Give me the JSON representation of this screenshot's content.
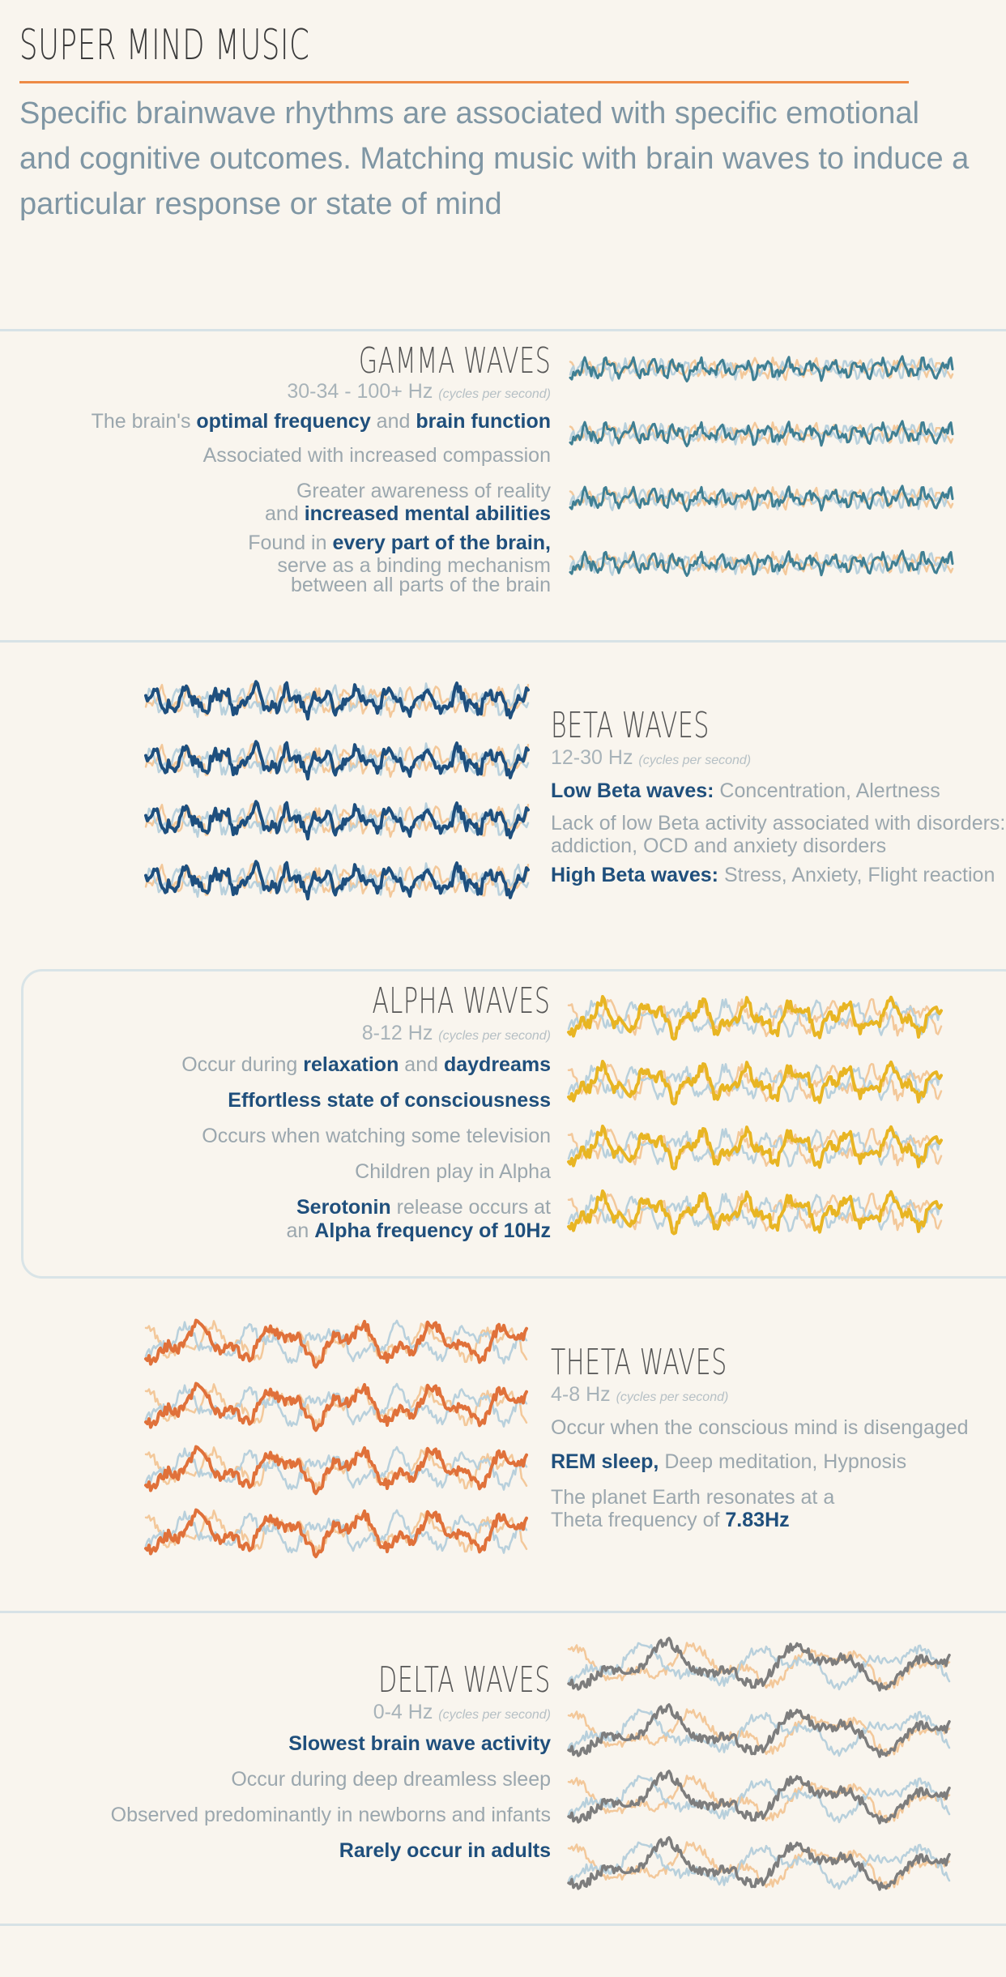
{
  "page": {
    "title": "SUPER MIND MUSIC",
    "intro": "Specific brainwave rhythms are associated with specific emotional and cognitive outcomes. Matching music with brain waves to induce a particular response or state of mind"
  },
  "sections": {
    "gamma": {
      "title": "GAMMA WAVES",
      "freq": "30-34 - 100+ Hz",
      "freq_note": "(cycles per second)",
      "lines": [
        {
          "segments": [
            {
              "t": "The brain's ",
              "b": false
            },
            {
              "t": "optimal frequency",
              "b": true
            },
            {
              "t": " and ",
              "b": false
            },
            {
              "t": "brain function",
              "b": true
            }
          ]
        },
        {
          "segments": [
            {
              "t": "Associated with increased compassion",
              "b": false
            }
          ]
        },
        {
          "segments": [
            {
              "t": "Greater awareness of reality",
              "b": false
            }
          ]
        },
        {
          "segments": [
            {
              "t": "and ",
              "b": false
            },
            {
              "t": "increased mental abilities",
              "b": true
            }
          ]
        },
        {
          "segments": [
            {
              "t": "Found in ",
              "b": false
            },
            {
              "t": "every part of the brain,",
              "b": true
            }
          ]
        },
        {
          "segments": [
            {
              "t": "serve as a binding mechanism",
              "b": false
            }
          ]
        },
        {
          "segments": [
            {
              "t": "between all parts of the brain",
              "b": false
            }
          ]
        }
      ],
      "wave_color": "#3f7f93",
      "wave_count": 4
    },
    "beta": {
      "title": "BETA WAVES",
      "freq": "12-30 Hz",
      "freq_note": "(cycles per second)",
      "lines": [
        {
          "segments": [
            {
              "t": "Low Beta waves:",
              "b": true
            },
            {
              "t": " Concentration, Alertness",
              "b": false
            }
          ]
        },
        {
          "segments": [
            {
              "t": "Lack of low Beta activity associated with disorders: A",
              "b": false
            }
          ]
        },
        {
          "segments": [
            {
              "t": "addiction, OCD and anxiety disorders",
              "b": false
            }
          ]
        },
        {
          "segments": [
            {
              "t": "High Beta waves:",
              "b": true
            },
            {
              "t": " Stress, Anxiety, Flight reaction",
              "b": false
            }
          ]
        }
      ],
      "wave_color": "#1e4f7e",
      "wave_count": 4
    },
    "alpha": {
      "title": "ALPHA WAVES",
      "freq": "8-12 Hz",
      "freq_note": "(cycles per second)",
      "lines": [
        {
          "segments": [
            {
              "t": "Occur during ",
              "b": false
            },
            {
              "t": "relaxation",
              "b": true
            },
            {
              "t": " and ",
              "b": false
            },
            {
              "t": "daydreams",
              "b": true
            }
          ]
        },
        {
          "segments": [
            {
              "t": "Effortless state of consciousness",
              "b": true
            }
          ]
        },
        {
          "segments": [
            {
              "t": "Occurs when watching some television",
              "b": false
            }
          ]
        },
        {
          "segments": [
            {
              "t": "Children play in Alpha",
              "b": false
            }
          ]
        },
        {
          "segments": [
            {
              "t": "Serotonin",
              "b": true
            },
            {
              "t": " release occurs at",
              "b": false
            }
          ]
        },
        {
          "segments": [
            {
              "t": "an ",
              "b": false
            },
            {
              "t": "Alpha frequency of 10Hz",
              "b": true
            }
          ]
        }
      ],
      "wave_color": "#e8b523",
      "wave_count": 4
    },
    "theta": {
      "title": "THETA WAVES",
      "freq": "4-8 Hz",
      "freq_note": "(cycles per second)",
      "lines": [
        {
          "segments": [
            {
              "t": "Occur when the conscious mind is disengaged",
              "b": false
            }
          ]
        },
        {
          "segments": [
            {
              "t": "REM sleep,",
              "b": true
            },
            {
              "t": " Deep meditation, Hypnosis",
              "b": false
            }
          ]
        },
        {
          "segments": [
            {
              "t": "The planet Earth resonates at a",
              "b": false
            }
          ]
        },
        {
          "segments": [
            {
              "t": "Theta frequency of ",
              "b": false
            },
            {
              "t": "7.83Hz",
              "b": true
            }
          ]
        }
      ],
      "wave_color": "#e0713a",
      "wave_count": 4
    },
    "delta": {
      "title": "DELTA WAVES",
      "freq": "0-4 Hz",
      "freq_note": "(cycles per second)",
      "lines": [
        {
          "segments": [
            {
              "t": "Slowest brain wave activity",
              "b": true
            }
          ]
        },
        {
          "segments": [
            {
              "t": "Occur during deep dreamless sleep",
              "b": false
            }
          ]
        },
        {
          "segments": [
            {
              "t": "Observed predominantly in newborns and infants",
              "b": false
            }
          ]
        },
        {
          "segments": [
            {
              "t": "Rarely occur in adults",
              "b": true
            }
          ]
        }
      ],
      "wave_color": "#7d7d7d",
      "wave_count": 4
    }
  },
  "colors": {
    "accent_rule": "#ee8a45",
    "background_wave_orange": "#f3c89a",
    "background_wave_blue": "#b8d0dc",
    "bold_text": "#1f4f7c"
  }
}
